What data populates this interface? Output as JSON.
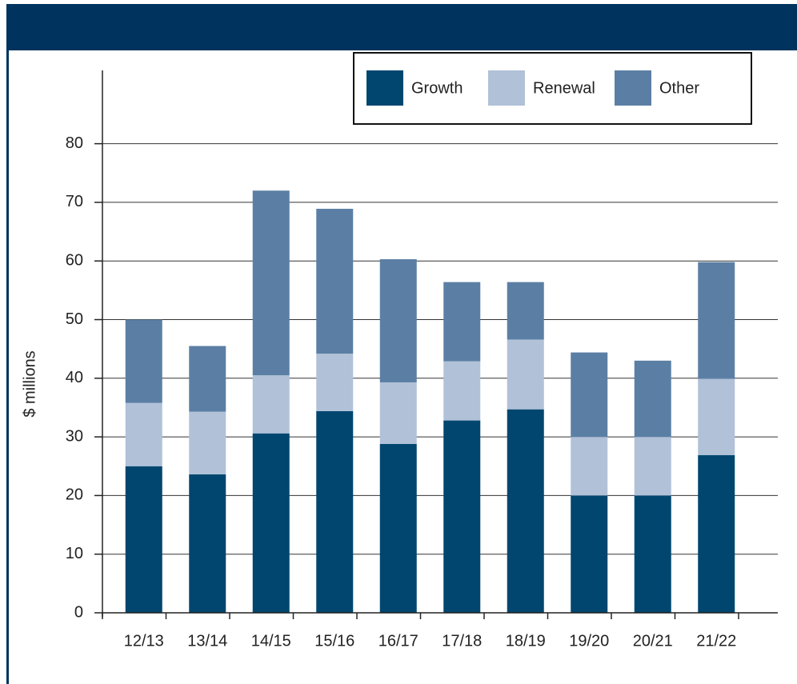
{
  "chart_data": {
    "type": "stacked_bar",
    "y_label": "$ millions",
    "categories": [
      "12/13",
      "13/14",
      "14/15",
      "15/16",
      "16/17",
      "17/18",
      "18/19",
      "19/20",
      "20/21",
      "21/22"
    ],
    "series": [
      {
        "name": "Growth",
        "color": "#00466f",
        "values": [
          25.0,
          23.6,
          30.6,
          34.4,
          28.8,
          32.8,
          34.7,
          20.0,
          20.0,
          26.9
        ]
      },
      {
        "name": "Renewal",
        "color": "#b0c1d8",
        "values": [
          10.8,
          10.7,
          9.9,
          9.8,
          10.5,
          10.1,
          11.9,
          10.0,
          10.0,
          13.0
        ]
      },
      {
        "name": "Other",
        "color": "#5b7fa4",
        "values": [
          14.2,
          11.2,
          31.5,
          24.7,
          21.0,
          13.5,
          9.8,
          14.4,
          13.0,
          19.9
        ]
      }
    ],
    "ylim": [
      0,
      92.5
    ],
    "yticks": [
      0,
      10,
      20,
      30,
      40,
      50,
      60,
      70,
      80
    ],
    "grid": true
  }
}
